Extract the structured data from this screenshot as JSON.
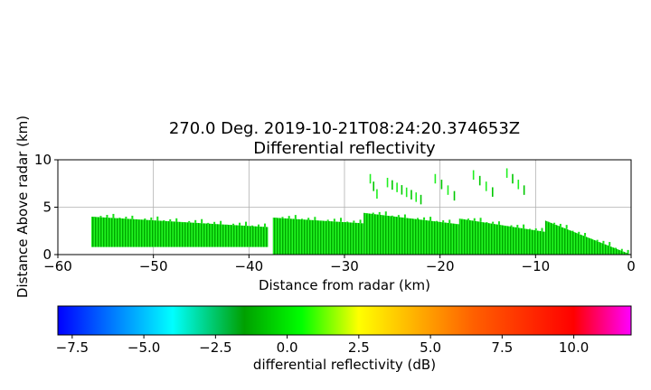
{
  "chart_data": [
    {
      "type": "heatmap",
      "title_line1": "270.0 Deg. 2019-10-21T08:24:20.374653Z",
      "title_line2": "Differential reflectivity",
      "xlabel": "Distance from radar (km)",
      "ylabel": "Distance Above radar  (km)",
      "xlim": [
        -60,
        0
      ],
      "ylim": [
        0,
        10
      ],
      "xticks": [
        -60,
        -50,
        -40,
        -30,
        -20,
        -10,
        0
      ],
      "xtick_labels": [
        "−60",
        "−50",
        "−40",
        "−30",
        "−20",
        "−10",
        "0"
      ],
      "yticks": [
        0,
        5,
        10
      ],
      "ytick_labels": [
        "0",
        "5",
        "10"
      ],
      "grid": true,
      "dominant_value_range_db": [
        0,
        1.5
      ],
      "echo_regions": [
        {
          "x0": -56.5,
          "x1": -38,
          "bottom": 0.8,
          "top_start": 4.0,
          "top_end": 2.9
        },
        {
          "x0": -37.5,
          "x1": -28,
          "bottom": 0,
          "top_start": 3.9,
          "top_end": 3.3
        },
        {
          "x0": -28,
          "x1": -18,
          "bottom": 0,
          "top_start": 4.4,
          "top_end": 3.2
        },
        {
          "x0": -18,
          "x1": -9,
          "bottom": 0,
          "top_start": 3.8,
          "top_end": 2.4
        },
        {
          "x0": -9,
          "x1": 0,
          "bottom": 0,
          "top_start": 3.6,
          "top_end": 0
        }
      ],
      "elevated_streaks": [
        {
          "x0": -25.5,
          "x1": -22,
          "y0": 7.2,
          "y1": 5.4
        },
        {
          "x0": -20.5,
          "x1": -18.5,
          "y0": 7.6,
          "y1": 5.8
        },
        {
          "x0": -16.5,
          "x1": -14.5,
          "y0": 8.0,
          "y1": 6.2
        },
        {
          "x0": -13.0,
          "x1": -11.2,
          "y0": 8.2,
          "y1": 6.4
        },
        {
          "x0": -27.3,
          "x1": -26.6,
          "y0": 7.6,
          "y1": 6.0
        }
      ]
    },
    {
      "type": "colorbar",
      "label": "differential reflectivity (dB)",
      "vmin": -8,
      "vmax": 12,
      "ticks": [
        -7.5,
        -5.0,
        -2.5,
        0.0,
        2.5,
        5.0,
        7.5,
        10.0
      ],
      "tick_labels": [
        "−7.5",
        "−5.0",
        "−2.5",
        "0.0",
        "2.5",
        "5.0",
        "7.5",
        "10.0"
      ],
      "colors": [
        {
          "value": -8,
          "color": "#0000ff"
        },
        {
          "value": -4,
          "color": "#00ffff"
        },
        {
          "value": -1.5,
          "color": "#00a000"
        },
        {
          "value": 0.5,
          "color": "#00ff00"
        },
        {
          "value": 2.5,
          "color": "#ffff00"
        },
        {
          "value": 6.5,
          "color": "#ff6000"
        },
        {
          "value": 10,
          "color": "#ff0000"
        },
        {
          "value": 12,
          "color": "#ff00ff"
        }
      ]
    }
  ]
}
